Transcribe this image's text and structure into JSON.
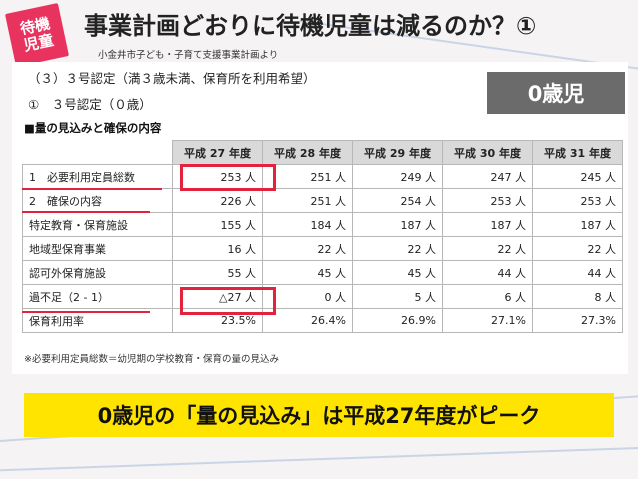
{
  "badge": "待機\n児童",
  "title": "事業計画どおりに待機児童は減るのか？①",
  "source": "小金井市子ども・子育て支援事業計画より",
  "heading1": "（３）３号認定（満３歳未満、保育所を利用希望）",
  "heading2": "①　３号認定（０歳）",
  "age_label": "0歳児",
  "table_title": "■量の見込みと確保の内容",
  "columns": [
    "平成 27 年度",
    "平成 28 年度",
    "平成 29 年度",
    "平成 30 年度",
    "平成 31 年度"
  ],
  "rows": [
    {
      "label": "1　必要利用定員総数",
      "values": [
        "253 人",
        "251 人",
        "249 人",
        "247 人",
        "245 人"
      ]
    },
    {
      "label": "2　確保の内容",
      "values": [
        "226 人",
        "251 人",
        "254 人",
        "253 人",
        "253 人"
      ]
    },
    {
      "label": "特定教育・保育施設",
      "values": [
        "155 人",
        "184 人",
        "187 人",
        "187 人",
        "187 人"
      ]
    },
    {
      "label": "地域型保育事業",
      "values": [
        "16 人",
        "22 人",
        "22 人",
        "22 人",
        "22 人"
      ]
    },
    {
      "label": "認可外保育施設",
      "values": [
        "55 人",
        "45 人",
        "45 人",
        "44 人",
        "44 人"
      ]
    },
    {
      "label": "過不足（2 - 1）",
      "values": [
        "△27 人",
        "0 人",
        "5 人",
        "6 人",
        "8 人"
      ]
    },
    {
      "label": "保育利用率",
      "values": [
        "23.5%",
        "26.4%",
        "26.9%",
        "27.1%",
        "27.3%"
      ]
    }
  ],
  "note": "※必要利用定員総数＝幼児期の学校教育・保育の量の見込み",
  "banner": "0歳児の「量の見込み」は平成27年度がピーク",
  "colors": {
    "accent": "#e3233d",
    "badge": "#e9335f",
    "banner": "#ffe400",
    "age_box": "#6b6b6b"
  }
}
